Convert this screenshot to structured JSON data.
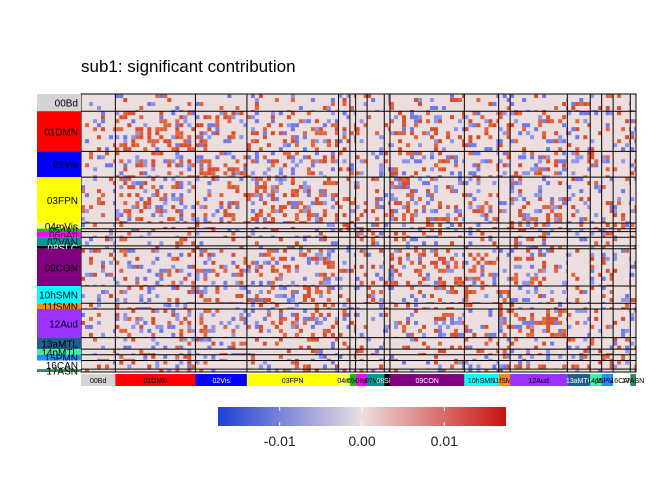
{
  "chart_data": {
    "type": "heatmap",
    "title": "sub1: significant contribution",
    "networks": [
      {
        "label": "00Bd",
        "size": 6,
        "color": "#d3d3d3"
      },
      {
        "label": "01DMN",
        "size": 14,
        "color": "#ff0000"
      },
      {
        "label": "02Vis",
        "size": 9,
        "color": "#0000ff"
      },
      {
        "label": "03FPN",
        "size": 16,
        "color": "#ffff00"
      },
      {
        "label": "04mVis",
        "size": 2,
        "color": "#ffff66"
      },
      {
        "label": "05dAtt",
        "size": 1,
        "color": "#00cc00"
      },
      {
        "label": "06pAtt",
        "size": 2,
        "color": "#ff00ff"
      },
      {
        "label": "07VAN",
        "size": 3,
        "color": "#009999"
      },
      {
        "label": "08SLC",
        "size": 1,
        "color": "#000000"
      },
      {
        "label": "09CON",
        "size": 13,
        "color": "#800080"
      },
      {
        "label": "10hSMN",
        "size": 6,
        "color": "#00ffff"
      },
      {
        "label": "11fSMN",
        "size": 2,
        "color": "#ff8c00"
      },
      {
        "label": "12Aud",
        "size": 10,
        "color": "#9b30ff"
      },
      {
        "label": "13aMTL",
        "size": 4,
        "color": "#1f5f8b"
      },
      {
        "label": "14pMTL",
        "size": 2,
        "color": "#3cf0a0"
      },
      {
        "label": "15PMN",
        "size": 2,
        "color": "#1e90ff"
      },
      {
        "label": "16CAN",
        "size": 3,
        "color": "#ffffff"
      },
      {
        "label": "17ASN",
        "size": 1,
        "color": "#2e8b57"
      }
    ],
    "bottom_labels": [
      "00Bd",
      "01DMN",
      "02Vis",
      "03FPN",
      "04m",
      "05d",
      "06p",
      "07VAN",
      "08SLC",
      "09CON",
      "10hSMN",
      "11fSMN",
      "12Aud",
      "13aMTL",
      "14pM",
      "15PMN",
      "16CAN",
      "17ASN"
    ],
    "color_scale": {
      "min": -0.0175,
      "max": 0.0175,
      "low_color": "#1f3fd6",
      "mid_color": "#ecdede",
      "high_color": "#c8120f",
      "ticks": [
        -0.01,
        0.0,
        0.01
      ],
      "tick_labels": [
        "-0.01",
        "0.00",
        "0.01"
      ]
    },
    "legend": "bottom",
    "grid": false
  }
}
